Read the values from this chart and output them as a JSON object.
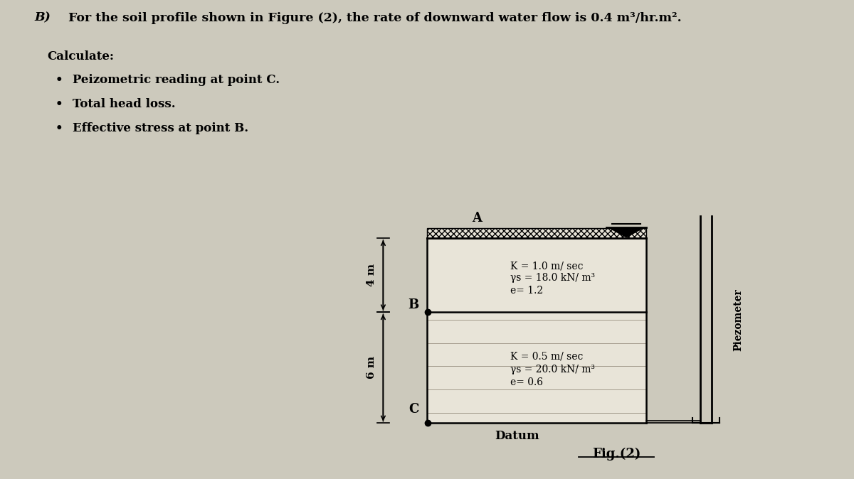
{
  "title_bold": "B)",
  "title_text": " For the soil profile shown in Figure (2), the rate of downward water flow is 0.4 m³/hr.m².",
  "subtitle": "Calculate:",
  "bullets": [
    "Peizometric reading at point C.",
    "Total head loss.",
    "Effective stress at point B."
  ],
  "fig_label": "Fig.(2)",
  "datum_label": "Datum",
  "piezometer_label": "Piezometer",
  "layer1_line1": "K = 1.0 m/ sec",
  "layer1_line2": "γs = 18.0 kN/ m³",
  "layer1_line3": "e= 1.2",
  "layer2_line1": "K = 0.5 m/ sec",
  "layer2_line2": "γs = 20.0 kN/ m³",
  "layer2_line3": "e= 0.6",
  "point_A": "A",
  "point_B": "B",
  "point_C": "C",
  "dim_4m": "4 m",
  "dim_6m": "6 m",
  "bg_color": "#ccc9bc",
  "text_color": "#000000"
}
